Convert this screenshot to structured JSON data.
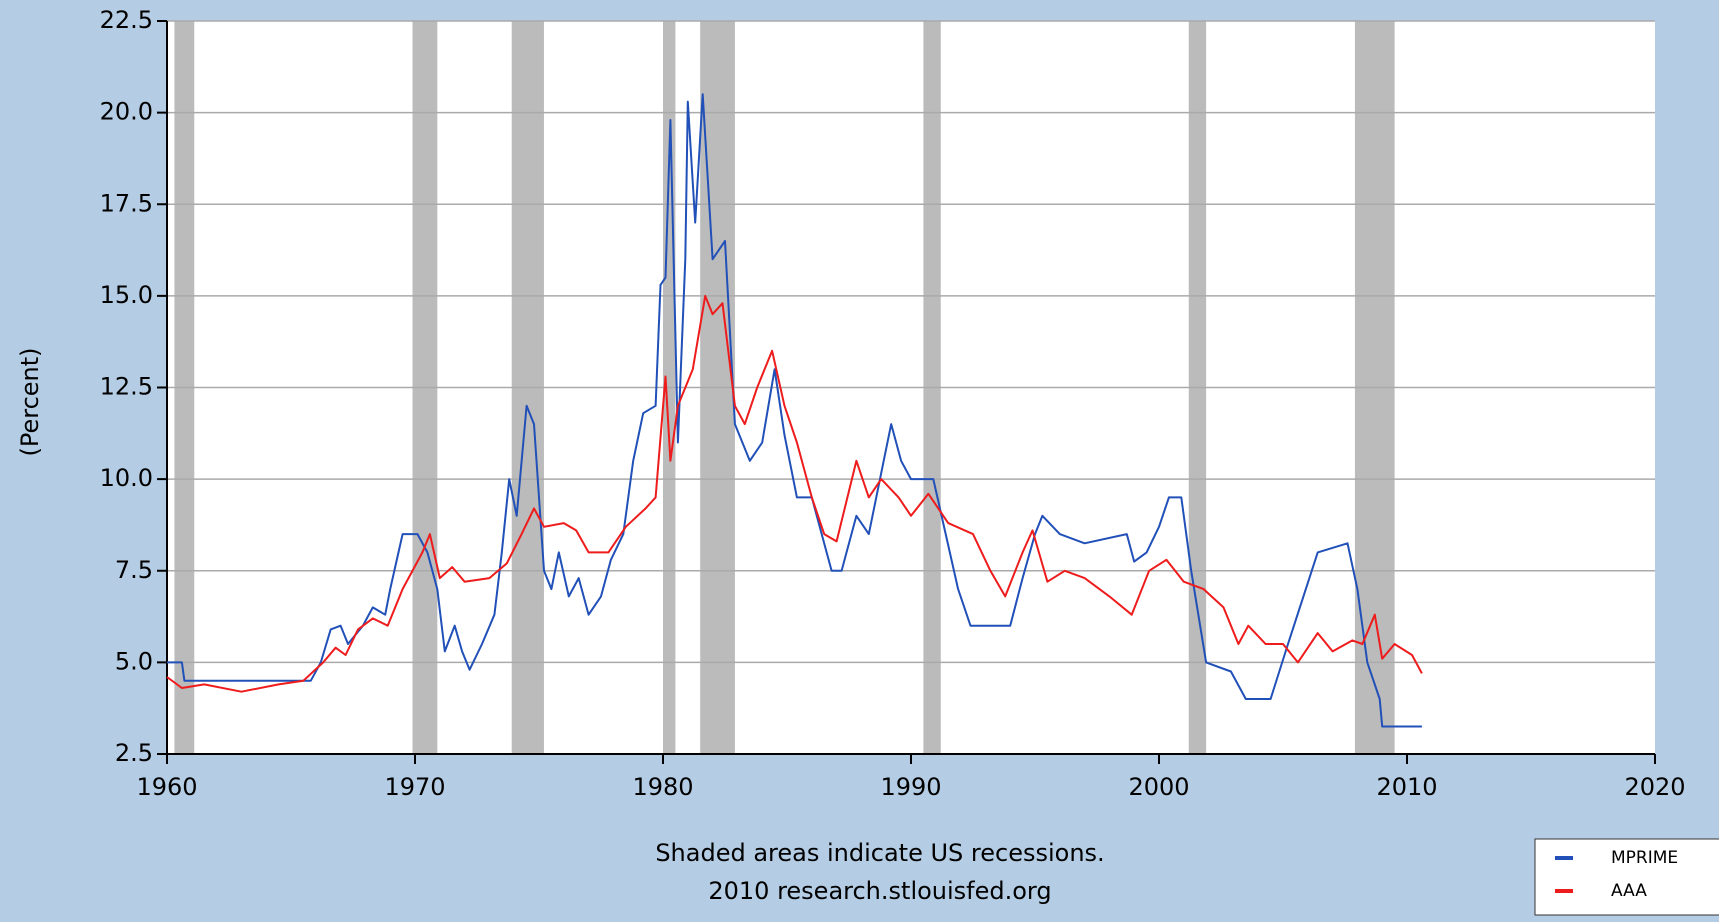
{
  "chart_data": {
    "type": "line",
    "ylabel": "(Percent)",
    "annotations": [
      "Shaded areas indicate US recessions.",
      "2010 research.stlouisfed.org"
    ],
    "xlim": [
      1960,
      2020
    ],
    "xticks": [
      1960,
      1970,
      1980,
      1990,
      2000,
      2010,
      2020
    ],
    "ylim": [
      2.5,
      22.5
    ],
    "yticks": [
      22.5,
      {
        "value": 20,
        "label": "20.0"
      },
      17.5,
      {
        "value": 15,
        "label": "15.0"
      },
      12.5,
      {
        "value": 10,
        "label": "10.0"
      },
      7.5,
      {
        "value": 5,
        "label": "5.0"
      },
      2.5
    ],
    "grid": true,
    "legend": "lower right",
    "recession_color": "#bbbbbb",
    "recessions": [
      {
        "start": 1960.3,
        "end": 1961.1
      },
      {
        "start": 1969.9,
        "end": 1970.9
      },
      {
        "start": 1973.9,
        "end": 1975.2
      },
      {
        "start": 1980.0,
        "end": 1980.5
      },
      {
        "start": 1981.5,
        "end": 1982.9
      },
      {
        "start": 1990.5,
        "end": 1991.2
      },
      {
        "start": 2001.2,
        "end": 2001.9
      },
      {
        "start": 2007.9,
        "end": 2009.5
      }
    ],
    "series": [
      {
        "name": "MPRIME",
        "color": "#2150b8",
        "x": [
          1960.0,
          1960.6,
          1960.7,
          1965.8,
          1966.2,
          1966.6,
          1967.0,
          1967.3,
          1967.9,
          1968.3,
          1968.8,
          1969.0,
          1969.5,
          1970.1,
          1970.5,
          1970.9,
          1971.2,
          1971.6,
          1971.9,
          1972.2,
          1972.7,
          1973.2,
          1973.5,
          1973.8,
          1974.1,
          1974.5,
          1974.8,
          1975.2,
          1975.5,
          1975.8,
          1976.2,
          1976.6,
          1977.0,
          1977.5,
          1977.9,
          1978.4,
          1978.8,
          1979.2,
          1979.7,
          1979.9,
          1980.1,
          1980.3,
          1980.6,
          1980.9,
          1981.0,
          1981.3,
          1981.6,
          1982.0,
          1982.5,
          1982.9,
          1983.5,
          1984.0,
          1984.5,
          1984.9,
          1985.4,
          1986.0,
          1986.4,
          1986.8,
          1987.2,
          1987.8,
          1988.3,
          1988.9,
          1989.2,
          1989.6,
          1990.0,
          1990.9,
          1991.4,
          1991.9,
          1992.4,
          1993.0,
          1994.0,
          1994.5,
          1995.0,
          1995.3,
          1996.0,
          1997.0,
          1998.7,
          1999.0,
          1999.5,
          2000.0,
          2000.4,
          2000.9,
          2001.3,
          2001.9,
          2002.9,
          2003.5,
          2004.5,
          2005.2,
          2006.4,
          2007.6,
          2008.0,
          2008.4,
          2008.9,
          2009.0,
          2010.6
        ],
        "values": [
          5.0,
          5.0,
          4.5,
          4.5,
          5.0,
          5.9,
          6.0,
          5.5,
          6.0,
          6.5,
          6.3,
          7.0,
          8.5,
          8.5,
          8.0,
          7.0,
          5.3,
          6.0,
          5.3,
          4.8,
          5.5,
          6.3,
          8.0,
          10.0,
          9.0,
          12.0,
          11.5,
          7.5,
          7.0,
          8.0,
          6.8,
          7.3,
          6.3,
          6.8,
          7.8,
          8.5,
          10.5,
          11.8,
          12.0,
          15.3,
          15.5,
          19.8,
          11.0,
          16.0,
          20.3,
          17.0,
          20.5,
          16.0,
          16.5,
          11.5,
          10.5,
          11.0,
          13.0,
          11.2,
          9.5,
          9.5,
          8.5,
          7.5,
          7.5,
          9.0,
          8.5,
          10.5,
          11.5,
          10.5,
          10.0,
          10.0,
          8.5,
          7.0,
          6.0,
          6.0,
          6.0,
          7.3,
          8.5,
          9.0,
          8.5,
          8.25,
          8.5,
          7.75,
          8.0,
          8.7,
          9.5,
          9.5,
          7.5,
          5.0,
          4.75,
          4.0,
          4.0,
          5.5,
          8.0,
          8.25,
          7.0,
          5.0,
          4.0,
          3.25,
          3.25
        ]
      },
      {
        "name": "AAA",
        "color": "#ee1c1c",
        "x": [
          1960.0,
          1960.6,
          1961.5,
          1963.0,
          1964.5,
          1965.5,
          1966.3,
          1966.8,
          1967.2,
          1967.7,
          1968.3,
          1968.9,
          1969.5,
          1970.3,
          1970.6,
          1971.0,
          1971.5,
          1972.0,
          1973.0,
          1973.7,
          1974.3,
          1974.8,
          1975.2,
          1976.0,
          1976.5,
          1977.0,
          1977.8,
          1978.5,
          1979.3,
          1979.7,
          1980.1,
          1980.3,
          1980.6,
          1981.2,
          1981.7,
          1982.0,
          1982.4,
          1982.9,
          1983.3,
          1983.8,
          1984.4,
          1984.9,
          1985.4,
          1986.0,
          1986.5,
          1987.0,
          1987.8,
          1988.3,
          1988.8,
          1989.5,
          1990.0,
          1990.7,
          1991.5,
          1992.5,
          1993.2,
          1993.8,
          1994.5,
          1994.9,
          1995.5,
          1996.2,
          1997.0,
          1998.0,
          1998.9,
          1999.6,
          2000.3,
          2001.0,
          2001.8,
          2002.6,
          2003.2,
          2003.6,
          2004.3,
          2005.0,
          2005.6,
          2006.4,
          2007.0,
          2007.8,
          2008.2,
          2008.7,
          2009.0,
          2009.5,
          2010.2,
          2010.6
        ],
        "values": [
          4.6,
          4.3,
          4.4,
          4.2,
          4.4,
          4.5,
          5.0,
          5.4,
          5.2,
          5.9,
          6.2,
          6.0,
          7.0,
          8.0,
          8.5,
          7.3,
          7.6,
          7.2,
          7.3,
          7.7,
          8.5,
          9.2,
          8.7,
          8.8,
          8.6,
          8.0,
          8.0,
          8.7,
          9.2,
          9.5,
          12.8,
          10.5,
          12.0,
          13.0,
          15.0,
          14.5,
          14.8,
          12.0,
          11.5,
          12.5,
          13.5,
          12.0,
          11.0,
          9.5,
          8.5,
          8.3,
          10.5,
          9.5,
          10.0,
          9.5,
          9.0,
          9.6,
          8.8,
          8.5,
          7.5,
          6.8,
          8.0,
          8.6,
          7.2,
          7.5,
          7.3,
          6.8,
          6.3,
          7.5,
          7.8,
          7.2,
          7.0,
          6.5,
          5.5,
          6.0,
          5.5,
          5.5,
          5.0,
          5.8,
          5.3,
          5.6,
          5.5,
          6.3,
          5.1,
          5.5,
          5.2,
          4.7
        ]
      }
    ]
  }
}
